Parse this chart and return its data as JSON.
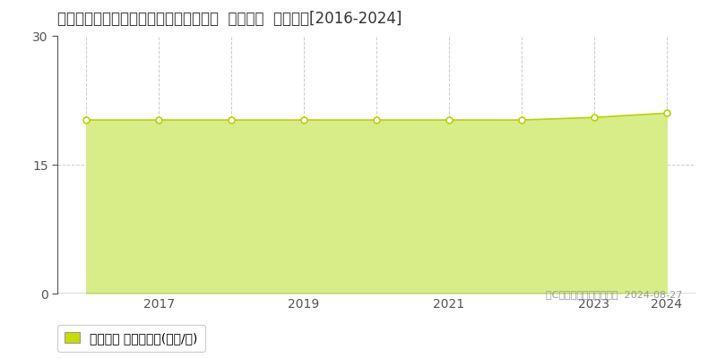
{
  "title": "大分県大分市大字津守字伏子８２番１外  地価公示  地価推移[2016-2024]",
  "years": [
    2016,
    2017,
    2018,
    2019,
    2020,
    2021,
    2022,
    2023,
    2024
  ],
  "values": [
    20.2,
    20.2,
    20.2,
    20.2,
    20.2,
    20.2,
    20.2,
    20.5,
    21.0
  ],
  "line_color": "#b8d400",
  "fill_color": "#d8ed88",
  "fill_alpha": 1.0,
  "marker_color": "#ffffff",
  "marker_edge_color": "#b8d400",
  "ylim": [
    0,
    30
  ],
  "yticks": [
    0,
    15,
    30
  ],
  "xlim_left": 2015.6,
  "xlim_right": 2024.4,
  "background_color": "#ffffff",
  "vgrid_color": "#aaaaaa",
  "hgrid_color": "#aaaaaa",
  "legend_label": "地価公示 平均坪単価(万円/坪)",
  "legend_color": "#c8dc00",
  "copyright_text": "（C）土地価格ドットコム  2024-08-27",
  "title_fontsize": 12,
  "tick_fontsize": 10,
  "legend_fontsize": 10,
  "xticks": [
    2017,
    2019,
    2021,
    2023,
    2024
  ]
}
